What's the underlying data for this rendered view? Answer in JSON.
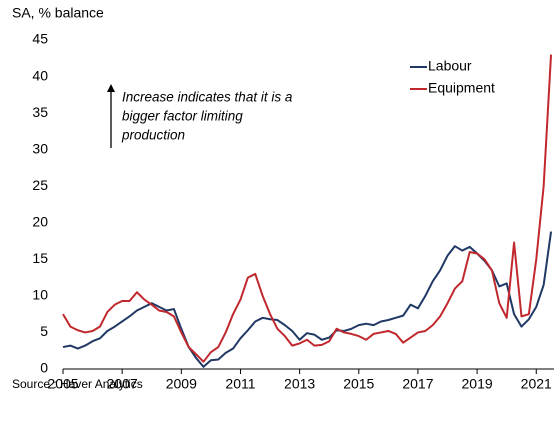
{
  "chart_data": {
    "type": "line",
    "y_axis_label": "SA, % balance",
    "annotation": [
      "Increase indicates that it is a",
      "bigger factor limiting",
      "production"
    ],
    "source": "Source : Haver Analytics",
    "legend_position": "upper right",
    "x": [
      2005,
      2005.25,
      2005.5,
      2005.75,
      2006,
      2006.25,
      2006.5,
      2006.75,
      2007,
      2007.25,
      2007.5,
      2007.75,
      2008,
      2008.25,
      2008.5,
      2008.75,
      2009,
      2009.25,
      2009.5,
      2009.75,
      2010,
      2010.25,
      2010.5,
      2010.75,
      2011,
      2011.25,
      2011.5,
      2011.75,
      2012,
      2012.25,
      2012.5,
      2012.75,
      2013,
      2013.25,
      2013.5,
      2013.75,
      2014,
      2014.25,
      2014.5,
      2014.75,
      2015,
      2015.25,
      2015.5,
      2015.75,
      2016,
      2016.25,
      2016.5,
      2016.75,
      2017,
      2017.25,
      2017.5,
      2017.75,
      2018,
      2018.25,
      2018.5,
      2018.75,
      2019,
      2019.25,
      2019.5,
      2019.75,
      2020,
      2020.25,
      2020.5,
      2020.75,
      2021,
      2021.25,
      2021.5
    ],
    "series": [
      {
        "name": "Labour",
        "color": "#1f3864",
        "values": [
          3,
          3.2,
          2.8,
          3.2,
          3.8,
          4.2,
          5.2,
          5.8,
          6.5,
          7.2,
          8,
          8.5,
          9,
          8.5,
          8,
          8.2,
          5.5,
          3,
          1.5,
          0.3,
          1.2,
          1.3,
          2.2,
          2.8,
          4.2,
          5.3,
          6.5,
          7,
          6.8,
          6.7,
          6,
          5.2,
          4,
          4.9,
          4.7,
          4,
          4.3,
          5.3,
          5.2,
          5.5,
          6,
          6.2,
          6,
          6.5,
          6.7,
          7,
          7.3,
          8.8,
          8.3,
          10,
          12,
          13.5,
          15.5,
          16.8,
          16.2,
          16.7,
          15.8,
          14.8,
          13.5,
          11.3,
          11.7,
          7.5,
          5.8,
          6.8,
          8.5,
          11.5,
          18.8
        ]
      },
      {
        "name": "Equipment",
        "color": "#c0282d",
        "values": [
          7.5,
          5.8,
          5.3,
          5,
          5.2,
          5.8,
          7.8,
          8.8,
          9.3,
          9.3,
          10.5,
          9.5,
          8.8,
          8,
          7.8,
          7.2,
          5,
          3,
          2,
          1,
          2.3,
          3,
          5,
          7.5,
          9.5,
          12.5,
          13,
          10,
          7.5,
          5.5,
          4.5,
          3.2,
          3.5,
          4,
          3.2,
          3.3,
          3.8,
          5.5,
          5,
          4.8,
          4.5,
          4,
          4.8,
          5,
          5.2,
          4.8,
          3.6,
          4.3,
          5,
          5.2,
          6,
          7.2,
          9,
          11,
          12,
          16,
          15.8,
          15,
          13.5,
          9,
          7,
          17.3,
          7.2,
          7.5,
          15,
          25,
          43
        ]
      }
    ],
    "xlim": [
      2005,
      2021.6
    ],
    "xticks": [
      2005,
      2007,
      2009,
      2011,
      2013,
      2015,
      2017,
      2019,
      2021
    ],
    "ylim": [
      0,
      45
    ],
    "yticks": [
      0,
      5,
      10,
      15,
      20,
      25,
      30,
      35,
      40,
      45
    ],
    "grid": false
  }
}
